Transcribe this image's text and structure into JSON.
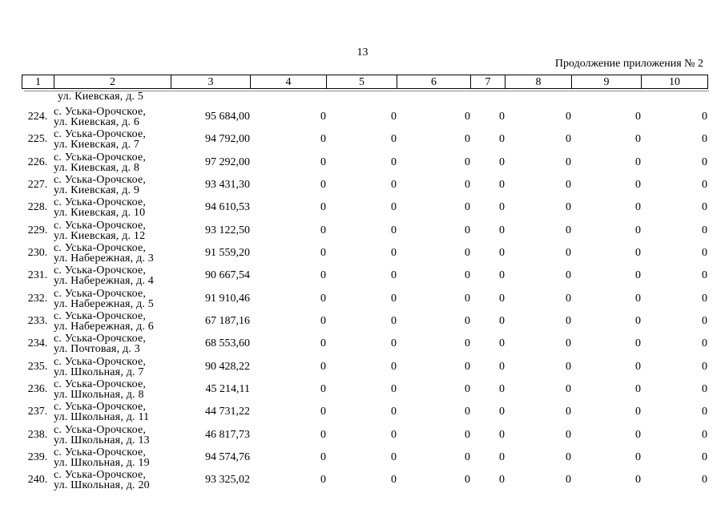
{
  "page": {
    "page_number": "13",
    "header_note": "Продолжение приложения № 2"
  },
  "colors": {
    "text": "#000000",
    "table_border": "#000000",
    "border_shadow": "#8a8a8a",
    "background": "#ffffff"
  },
  "table": {
    "column_headers": [
      "1",
      "2",
      "3",
      "4",
      "5",
      "6",
      "7",
      "8",
      "9",
      "10"
    ],
    "continuation_line": "ул. Киевская, д. 5",
    "rows": [
      {
        "num": "224.",
        "address": [
          "с. Уська-Орочское,",
          "ул. Киевская, д. 6"
        ],
        "values": [
          "95 684,00",
          "0",
          "0",
          "0",
          "0",
          "0",
          "0",
          "0"
        ]
      },
      {
        "num": "225.",
        "address": [
          "с. Уська-Орочское,",
          "ул. Киевская, д. 7"
        ],
        "values": [
          "94 792,00",
          "0",
          "0",
          "0",
          "0",
          "0",
          "0",
          "0"
        ]
      },
      {
        "num": "226.",
        "address": [
          "с. Уська-Орочское,",
          "ул. Киевская, д. 8"
        ],
        "values": [
          "97 292,00",
          "0",
          "0",
          "0",
          "0",
          "0",
          "0",
          "0"
        ]
      },
      {
        "num": "227.",
        "address": [
          "с. Уська-Орочское,",
          "ул. Киевская, д. 9"
        ],
        "values": [
          "93 431,30",
          "0",
          "0",
          "0",
          "0",
          "0",
          "0",
          "0"
        ]
      },
      {
        "num": "228.",
        "address": [
          "с. Уська-Орочское,",
          "ул. Киевская, д. 10"
        ],
        "values": [
          "94 610,53",
          "0",
          "0",
          "0",
          "0",
          "0",
          "0",
          "0"
        ]
      },
      {
        "num": "229.",
        "address": [
          "с. Уська-Орочское,",
          "ул. Киевская, д. 12"
        ],
        "values": [
          "93 122,50",
          "0",
          "0",
          "0",
          "0",
          "0",
          "0",
          "0"
        ]
      },
      {
        "num": "230.",
        "address": [
          "с. Уська-Орочское,",
          "ул. Набережная, д. 3"
        ],
        "values": [
          "91 559,20",
          "0",
          "0",
          "0",
          "0",
          "0",
          "0",
          "0"
        ]
      },
      {
        "num": "231.",
        "address": [
          "с. Уська-Орочское,",
          "ул. Набережная, д. 4"
        ],
        "values": [
          "90 667,54",
          "0",
          "0",
          "0",
          "0",
          "0",
          "0",
          "0"
        ]
      },
      {
        "num": "232.",
        "address": [
          "с. Уська-Орочское,",
          "ул. Набережная, д. 5"
        ],
        "values": [
          "91 910,46",
          "0",
          "0",
          "0",
          "0",
          "0",
          "0",
          "0"
        ]
      },
      {
        "num": "233.",
        "address": [
          "с. Уська-Орочское,",
          "ул. Набережная, д. 6"
        ],
        "values": [
          "67 187,16",
          "0",
          "0",
          "0",
          "0",
          "0",
          "0",
          "0"
        ]
      },
      {
        "num": "234.",
        "address": [
          "с. Уська-Орочское,",
          "ул. Почтовая, д. 3"
        ],
        "values": [
          "68 553,60",
          "0",
          "0",
          "0",
          "0",
          "0",
          "0",
          "0"
        ]
      },
      {
        "num": "235.",
        "address": [
          "с. Уська-Орочское,",
          "ул. Школьная, д. 7"
        ],
        "values": [
          "90 428,22",
          "0",
          "0",
          "0",
          "0",
          "0",
          "0",
          "0"
        ]
      },
      {
        "num": "236.",
        "address": [
          "с. Уська-Орочское,",
          "ул. Школьная, д. 8"
        ],
        "values": [
          "45 214,11",
          "0",
          "0",
          "0",
          "0",
          "0",
          "0",
          "0"
        ]
      },
      {
        "num": "237.",
        "address": [
          "с. Уська-Орочское,",
          "ул. Школьная, д. 11"
        ],
        "values": [
          "44 731,22",
          "0",
          "0",
          "0",
          "0",
          "0",
          "0",
          "0"
        ]
      },
      {
        "num": "238.",
        "address": [
          "с. Уська-Орочское,",
          "ул. Школьная, д. 13"
        ],
        "values": [
          "46 817,73",
          "0",
          "0",
          "0",
          "0",
          "0",
          "0",
          "0"
        ]
      },
      {
        "num": "239.",
        "address": [
          "с. Уська-Орочское,",
          "ул. Школьная, д. 19"
        ],
        "values": [
          "94 574,76",
          "0",
          "0",
          "0",
          "0",
          "0",
          "0",
          "0"
        ]
      },
      {
        "num": "240.",
        "address": [
          "с. Уська-Орочское,",
          "ул. Школьная, д. 20"
        ],
        "values": [
          "93 325,02",
          "0",
          "0",
          "0",
          "0",
          "0",
          "0",
          "0"
        ]
      }
    ]
  }
}
